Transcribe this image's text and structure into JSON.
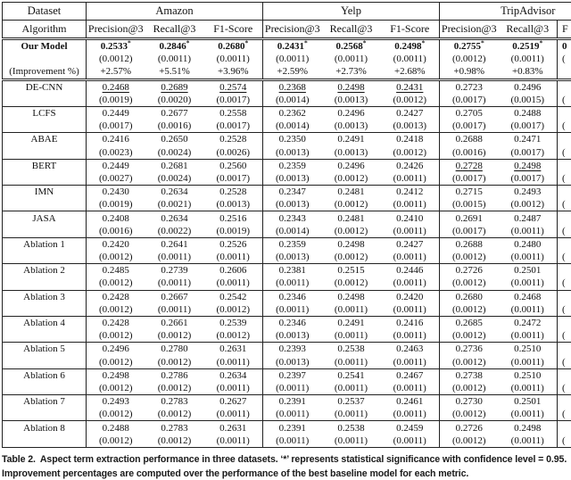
{
  "table": {
    "header": {
      "corner_top": "Dataset",
      "corner_bottom": "Algorithm",
      "sections": [
        {
          "name": "Amazon",
          "cols": [
            "Precision@3",
            "Recall@3",
            "F1-Score"
          ]
        },
        {
          "name": "Yelp",
          "cols": [
            "Precision@3",
            "Recall@3",
            "F1-Score"
          ]
        },
        {
          "name": "TripAdvisor",
          "cols": [
            "Precision@3",
            "Recall@3",
            "F"
          ]
        }
      ]
    },
    "rows": [
      {
        "label": "Our Model",
        "bold": true,
        "lines": [
          {
            "kind": "value",
            "bold": true,
            "cells": [
              "0.2533*",
              "0.2846*",
              "0.2680*",
              "0.2431*",
              "0.2568*",
              "0.2498*",
              "0.2755*",
              "0.2519*",
              "0"
            ]
          },
          {
            "kind": "std",
            "cells": [
              "(0.0012)",
              "(0.0011)",
              "(0.0011)",
              "(0.0011)",
              "(0.0011)",
              "(0.0011)",
              "(0.0012)",
              "(0.0011)",
              "("
            ]
          },
          {
            "kind": "improvement",
            "label": "(Improvement %)",
            "cells": [
              "+2.57%",
              "+5.51%",
              "+3.96%",
              "+2.59%",
              "+2.73%",
              "+2.68%",
              "+0.98%",
              "+0.83%",
              ""
            ]
          }
        ]
      },
      {
        "label": "DE-CNN",
        "strong_top": true,
        "lines": [
          {
            "kind": "value",
            "underline": [
              1,
              1,
              1,
              1,
              1,
              1,
              0,
              0,
              0
            ],
            "cells": [
              "0.2468",
              "0.2689",
              "0.2574",
              "0.2368",
              "0.2498",
              "0.2431",
              "0.2723",
              "0.2496",
              ""
            ]
          },
          {
            "kind": "std",
            "cells": [
              "(0.0019)",
              "(0.0020)",
              "(0.0017)",
              "(0.0014)",
              "(0.0013)",
              "(0.0012)",
              "(0.0017)",
              "(0.0015)",
              "("
            ]
          }
        ]
      },
      {
        "label": "LCFS",
        "lines": [
          {
            "kind": "value",
            "cells": [
              "0.2449",
              "0.2677",
              "0.2558",
              "0.2362",
              "0.2496",
              "0.2427",
              "0.2705",
              "0.2488",
              ""
            ]
          },
          {
            "kind": "std",
            "cells": [
              "(0.0017)",
              "(0.0016)",
              "(0.0017)",
              "(0.0014)",
              "(0.0013)",
              "(0.0013)",
              "(0.0017)",
              "(0.0017)",
              "("
            ]
          }
        ]
      },
      {
        "label": "ABAE",
        "lines": [
          {
            "kind": "value",
            "cells": [
              "0.2416",
              "0.2650",
              "0.2528",
              "0.2350",
              "0.2491",
              "0.2418",
              "0.2688",
              "0.2471",
              ""
            ]
          },
          {
            "kind": "std",
            "cells": [
              "(0.0023)",
              "(0.0024)",
              "(0.0026)",
              "(0.0013)",
              "(0.0013)",
              "(0.0012)",
              "(0.0016)",
              "(0.0017)",
              "("
            ]
          }
        ]
      },
      {
        "label": "BERT",
        "lines": [
          {
            "kind": "value",
            "underline": [
              0,
              0,
              0,
              0,
              0,
              0,
              1,
              1,
              0
            ],
            "cells": [
              "0.2449",
              "0.2681",
              "0.2560",
              "0.2359",
              "0.2496",
              "0.2426",
              "0.2728",
              "0.2498",
              ""
            ]
          },
          {
            "kind": "std",
            "cells": [
              "(0.0027)",
              "(0.0024)",
              "(0.0017)",
              "(0.0013)",
              "(0.0012)",
              "(0.0011)",
              "(0.0017)",
              "(0.0017)",
              "("
            ]
          }
        ]
      },
      {
        "label": "IMN",
        "lines": [
          {
            "kind": "value",
            "cells": [
              "0.2430",
              "0.2634",
              "0.2528",
              "0.2347",
              "0.2481",
              "0.2412",
              "0.2715",
              "0.2493",
              ""
            ]
          },
          {
            "kind": "std",
            "cells": [
              "(0.0019)",
              "(0.0021)",
              "(0.0013)",
              "(0.0013)",
              "(0.0012)",
              "(0.0011)",
              "(0.0015)",
              "(0.0012)",
              "("
            ]
          }
        ]
      },
      {
        "label": "JASA",
        "lines": [
          {
            "kind": "value",
            "cells": [
              "0.2408",
              "0.2634",
              "0.2516",
              "0.2343",
              "0.2481",
              "0.2410",
              "0.2691",
              "0.2487",
              ""
            ]
          },
          {
            "kind": "std",
            "cells": [
              "(0.0016)",
              "(0.0022)",
              "(0.0019)",
              "(0.0014)",
              "(0.0012)",
              "(0.0011)",
              "(0.0017)",
              "(0.0011)",
              "("
            ]
          }
        ]
      },
      {
        "label": "Ablation 1",
        "lines": [
          {
            "kind": "value",
            "cells": [
              "0.2420",
              "0.2641",
              "0.2526",
              "0.2359",
              "0.2498",
              "0.2427",
              "0.2688",
              "0.2480",
              ""
            ]
          },
          {
            "kind": "std",
            "cells": [
              "(0.0012)",
              "(0.0011)",
              "(0.0011)",
              "(0.0013)",
              "(0.0012)",
              "(0.0011)",
              "(0.0012)",
              "(0.0011)",
              "("
            ]
          }
        ]
      },
      {
        "label": "Ablation 2",
        "lines": [
          {
            "kind": "value",
            "cells": [
              "0.2485",
              "0.2739",
              "0.2606",
              "0.2381",
              "0.2515",
              "0.2446",
              "0.2726",
              "0.2501",
              ""
            ]
          },
          {
            "kind": "std",
            "cells": [
              "(0.0012)",
              "(0.0011)",
              "(0.0011)",
              "(0.0011)",
              "(0.0012)",
              "(0.0011)",
              "(0.0012)",
              "(0.0011)",
              "("
            ]
          }
        ]
      },
      {
        "label": "Ablation 3",
        "lines": [
          {
            "kind": "value",
            "cells": [
              "0.2428",
              "0.2667",
              "0.2542",
              "0.2346",
              "0.2498",
              "0.2420",
              "0.2680",
              "0.2468",
              ""
            ]
          },
          {
            "kind": "std",
            "cells": [
              "(0.0012)",
              "(0.0011)",
              "(0.0012)",
              "(0.0011)",
              "(0.0011)",
              "(0.0011)",
              "(0.0012)",
              "(0.0011)",
              "("
            ]
          }
        ]
      },
      {
        "label": "Ablation 4",
        "lines": [
          {
            "kind": "value",
            "cells": [
              "0.2428",
              "0.2661",
              "0.2539",
              "0.2346",
              "0.2491",
              "0.2416",
              "0.2685",
              "0.2472",
              ""
            ]
          },
          {
            "kind": "std",
            "cells": [
              "(0.0012)",
              "(0.0012)",
              "(0.0012)",
              "(0.0013)",
              "(0.0011)",
              "(0.0011)",
              "(0.0012)",
              "(0.0011)",
              "("
            ]
          }
        ]
      },
      {
        "label": "Ablation 5",
        "lines": [
          {
            "kind": "value",
            "cells": [
              "0.2496",
              "0.2780",
              "0.2631",
              "0.2393",
              "0.2538",
              "0.2463",
              "0.2736",
              "0.2510",
              ""
            ]
          },
          {
            "kind": "std",
            "cells": [
              "(0.0012)",
              "(0.0012)",
              "(0.0011)",
              "(0.0013)",
              "(0.0011)",
              "(0.0011)",
              "(0.0012)",
              "(0.0011)",
              "("
            ]
          }
        ]
      },
      {
        "label": "Ablation 6",
        "lines": [
          {
            "kind": "value",
            "cells": [
              "0.2498",
              "0.2786",
              "0.2634",
              "0.2397",
              "0.2541",
              "0.2467",
              "0.2738",
              "0.2510",
              ""
            ]
          },
          {
            "kind": "std",
            "cells": [
              "(0.0012)",
              "(0.0012)",
              "(0.0011)",
              "(0.0011)",
              "(0.0011)",
              "(0.0011)",
              "(0.0012)",
              "(0.0011)",
              "("
            ]
          }
        ]
      },
      {
        "label": "Ablation 7",
        "lines": [
          {
            "kind": "value",
            "cells": [
              "0.2493",
              "0.2783",
              "0.2627",
              "0.2391",
              "0.2537",
              "0.2461",
              "0.2730",
              "0.2501",
              ""
            ]
          },
          {
            "kind": "std",
            "cells": [
              "(0.0012)",
              "(0.0012)",
              "(0.0011)",
              "(0.0011)",
              "(0.0011)",
              "(0.0011)",
              "(0.0012)",
              "(0.0011)",
              "("
            ]
          }
        ]
      },
      {
        "label": "Ablation 8",
        "lines": [
          {
            "kind": "value",
            "cells": [
              "0.2488",
              "0.2783",
              "0.2631",
              "0.2391",
              "0.2538",
              "0.2459",
              "0.2726",
              "0.2498",
              ""
            ]
          },
          {
            "kind": "std",
            "cells": [
              "(0.0012)",
              "(0.0012)",
              "(0.0011)",
              "(0.0011)",
              "(0.0011)",
              "(0.0011)",
              "(0.0012)",
              "(0.0011)",
              "("
            ]
          }
        ]
      }
    ]
  },
  "caption": {
    "label": "Table 2.",
    "line1": "Aspect term extraction performance in three datasets. ‘*’ represents statistical significance with confidence level = 0.95.",
    "line2": "Improvement percentages are computed over the performance of the best baseline model for each metric."
  }
}
